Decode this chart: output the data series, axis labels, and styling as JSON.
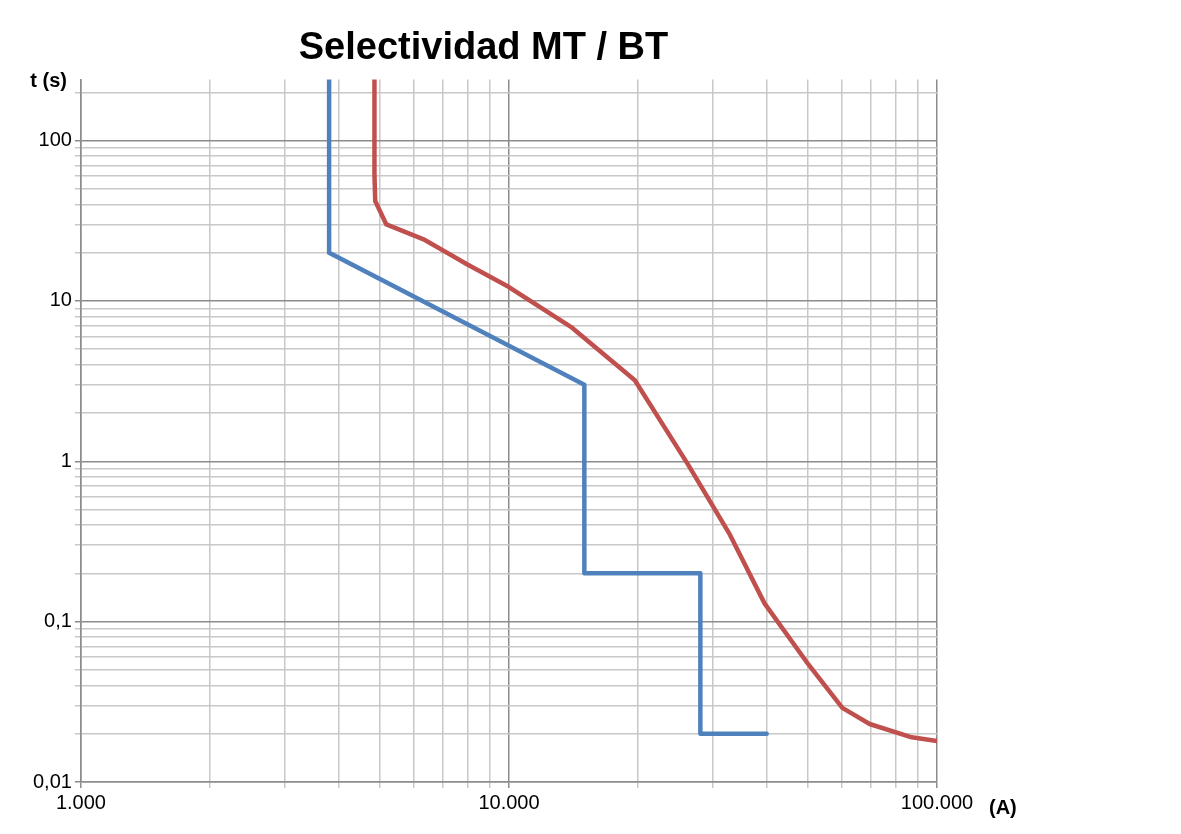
{
  "chart_data": {
    "type": "line",
    "title": "Selectividad MT / BT",
    "xlabel": "(A)",
    "ylabel": "t (s)",
    "log": "xy",
    "grid": true,
    "legend": false,
    "marker": "none",
    "line_style": "solid",
    "xlim": [
      1000,
      100000
    ],
    "ylim": [
      0.01,
      240
    ],
    "xticks": [
      {
        "value": 1000,
        "label": "1.000"
      },
      {
        "value": 2000,
        "label": null
      },
      {
        "value": 3000,
        "label": null
      },
      {
        "value": 4000,
        "label": null
      },
      {
        "value": 5000,
        "label": null
      },
      {
        "value": 6000,
        "label": null
      },
      {
        "value": 7000,
        "label": null
      },
      {
        "value": 8000,
        "label": null
      },
      {
        "value": 9000,
        "label": null
      },
      {
        "value": 10000,
        "label": "10.000"
      },
      {
        "value": 20000,
        "label": null
      },
      {
        "value": 30000,
        "label": null
      },
      {
        "value": 40000,
        "label": null
      },
      {
        "value": 50000,
        "label": null
      },
      {
        "value": 60000,
        "label": null
      },
      {
        "value": 70000,
        "label": null
      },
      {
        "value": 80000,
        "label": null
      },
      {
        "value": 90000,
        "label": null
      },
      {
        "value": 100000,
        "label": "100.000"
      }
    ],
    "yticks": [
      {
        "value": 0.01,
        "label": "0,01"
      },
      {
        "value": 0.02,
        "label": null
      },
      {
        "value": 0.03,
        "label": null
      },
      {
        "value": 0.04,
        "label": null
      },
      {
        "value": 0.05,
        "label": null
      },
      {
        "value": 0.06,
        "label": null
      },
      {
        "value": 0.07,
        "label": null
      },
      {
        "value": 0.08,
        "label": null
      },
      {
        "value": 0.09,
        "label": null
      },
      {
        "value": 0.1,
        "label": "0,1"
      },
      {
        "value": 0.2,
        "label": null
      },
      {
        "value": 0.3,
        "label": null
      },
      {
        "value": 0.4,
        "label": null
      },
      {
        "value": 0.5,
        "label": null
      },
      {
        "value": 0.6,
        "label": null
      },
      {
        "value": 0.7,
        "label": null
      },
      {
        "value": 0.8,
        "label": null
      },
      {
        "value": 0.9,
        "label": null
      },
      1,
      {
        "value": 2,
        "label": null
      },
      {
        "value": 3,
        "label": null
      },
      {
        "value": 4,
        "label": null
      },
      {
        "value": 5,
        "label": null
      },
      {
        "value": 6,
        "label": null
      },
      {
        "value": 7,
        "label": null
      },
      {
        "value": 8,
        "label": null
      },
      {
        "value": 9,
        "label": null
      },
      10,
      {
        "value": 20,
        "label": null
      },
      {
        "value": 30,
        "label": null
      },
      {
        "value": 40,
        "label": null
      },
      {
        "value": 50,
        "label": null
      },
      {
        "value": 60,
        "label": null
      },
      {
        "value": 70,
        "label": null
      },
      {
        "value": 80,
        "label": null
      },
      {
        "value": 90,
        "label": null
      },
      100,
      {
        "value": 200,
        "label": null
      }
    ],
    "series": [
      {
        "color": "#c0504d",
        "x": [
          4850,
          4850,
          4870,
          5170,
          6360,
          7960,
          10000,
          13950,
          19680,
          26170,
          32800,
          39540,
          49600,
          60100,
          69600,
          87300,
          100000
        ],
        "values": [
          240,
          62,
          42,
          30,
          24,
          17,
          12.2,
          6.9,
          3.2,
          0.96,
          0.35,
          0.13,
          0.056,
          0.029,
          0.023,
          0.019,
          0.018
        ]
      },
      {
        "color": "#4f81bd",
        "x": [
          3800,
          3800,
          15000,
          15000,
          28000,
          28000,
          40000
        ],
        "values": [
          240,
          20,
          3,
          0.2,
          0.2,
          0.02,
          0.02
        ]
      }
    ]
  }
}
